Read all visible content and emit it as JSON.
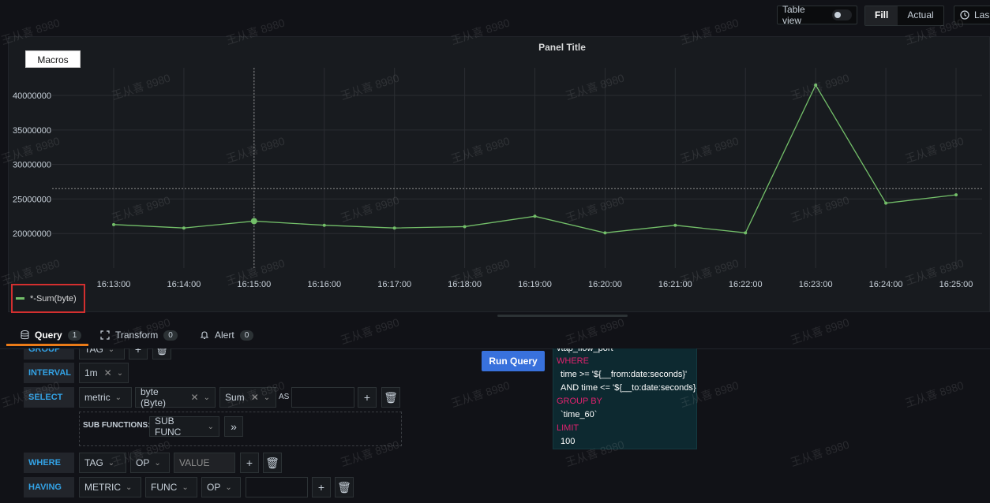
{
  "toolbar": {
    "table_view_label": "Table view",
    "fill_label": "Fill",
    "actual_label": "Actual",
    "time_label": "Las"
  },
  "panel": {
    "title": "Panel Title",
    "macros_label": "Macros"
  },
  "chart_data": {
    "type": "line",
    "title": "Panel Title",
    "x": [
      "16:13:00",
      "16:14:00",
      "16:15:00",
      "16:16:00",
      "16:17:00",
      "16:18:00",
      "16:19:00",
      "16:20:00",
      "16:21:00",
      "16:22:00",
      "16:23:00",
      "16:24:00",
      "16:25:00"
    ],
    "y_ticks": [
      "40000000",
      "35000000",
      "30000000",
      "25000000",
      "20000000"
    ],
    "ylim": [
      17000000,
      44000000
    ],
    "threshold": 26500000,
    "series": [
      {
        "name": "*-Sum(byte)",
        "color": "#73bf69",
        "values": [
          21300000,
          20800000,
          21800000,
          21200000,
          20800000,
          21000000,
          22500000,
          20100000,
          21200000,
          20100000,
          41500000,
          24400000,
          25600000
        ]
      }
    ],
    "legend_position": "bottom-left",
    "grid": true
  },
  "tabs": [
    {
      "label": "Query",
      "count": "1"
    },
    {
      "label": "Transform",
      "count": "0"
    },
    {
      "label": "Alert",
      "count": "0"
    }
  ],
  "query": {
    "group_by_label": "GROUP BY",
    "group_by_tag": "TAG",
    "interval_label": "INTERVAL",
    "interval_value": "1m",
    "select_label": "SELECT",
    "select_metric": "metric",
    "select_field": "byte (Byte)",
    "select_func": "Sum",
    "as_label": "AS",
    "sub_functions_label": "SUB FUNCTIONS:",
    "sub_func": "SUB FUNC",
    "more": "»",
    "where_label": "WHERE",
    "where_tag": "TAG",
    "where_op": "OP",
    "where_value_placeholder": "VALUE",
    "having_label": "HAVING",
    "having_metric": "METRIC",
    "having_func": "FUNC",
    "having_op": "OP",
    "run_query_label": "Run Query"
  },
  "sql": {
    "line1": "vtap_flow_port",
    "line2": "WHERE",
    "line3": "time >= '${__from:date:seconds}'",
    "line4": "AND time <= '${__to:date:seconds}'",
    "line5": "GROUP BY",
    "line6": "`time_60`",
    "line7": "LIMIT",
    "line8": "100"
  },
  "watermark": "王从喜 8980"
}
